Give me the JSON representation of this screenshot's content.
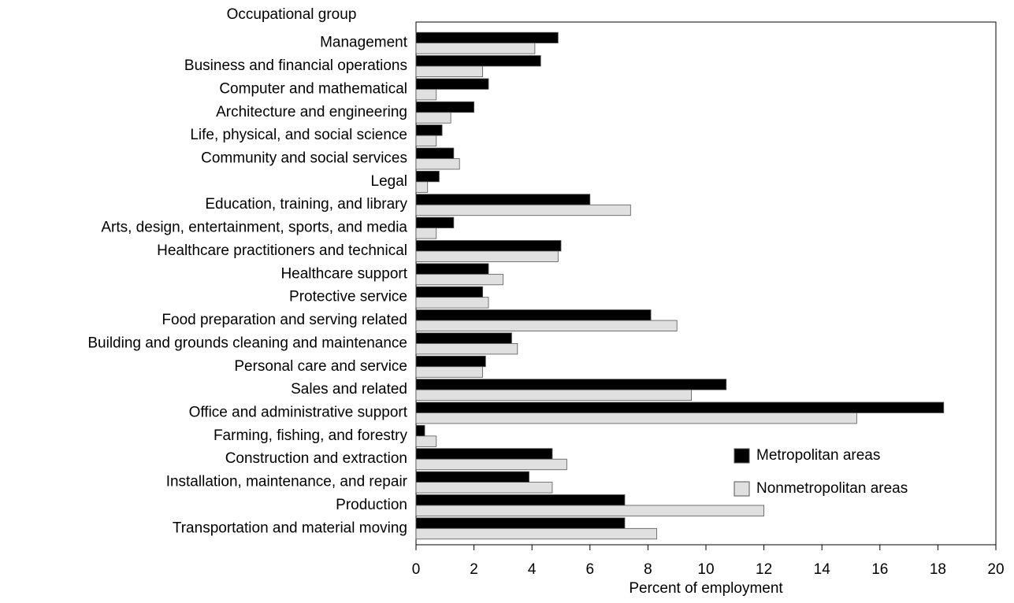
{
  "chart_data": {
    "type": "hbar",
    "title": "Occupational group",
    "x_label": "Percent of employment",
    "categories": [
      "Management",
      "Business and financial operations",
      "Computer and mathematical",
      "Architecture and engineering",
      "Life, physical, and social science",
      "Community and social services",
      "Legal",
      "Education, training, and library",
      "Arts, design, entertainment, sports, and media",
      "Healthcare practitioners and technical",
      "Healthcare support",
      "Protective service",
      "Food preparation and serving related",
      "Building and grounds cleaning and maintenance",
      "Personal care and service",
      "Sales and related",
      "Office and administrative support",
      "Farming, fishing, and forestry",
      "Construction and extraction",
      "Installation, maintenance, and repair",
      "Production",
      "Transportation and material moving"
    ],
    "series": [
      {
        "name": "Metropolitan areas",
        "color": "#000000",
        "values": [
          4.9,
          4.3,
          2.5,
          2.0,
          0.9,
          1.3,
          0.8,
          6.0,
          1.3,
          5.0,
          2.5,
          2.3,
          8.1,
          3.3,
          2.4,
          10.7,
          18.2,
          0.3,
          4.7,
          3.9,
          7.2,
          7.2
        ]
      },
      {
        "name": "Nonmetropolitan areas",
        "color": "#e0e0e0",
        "values": [
          4.1,
          2.3,
          0.7,
          1.2,
          0.7,
          1.5,
          0.4,
          7.4,
          0.7,
          4.9,
          3.0,
          2.5,
          9.0,
          3.5,
          2.3,
          9.5,
          15.2,
          0.7,
          5.2,
          4.7,
          12.0,
          8.3
        ]
      }
    ],
    "xlim": [
      0,
      20
    ],
    "xticks": [
      0,
      2,
      4,
      6,
      8,
      10,
      12,
      14,
      16,
      18,
      20
    ],
    "legend": "lower right"
  }
}
